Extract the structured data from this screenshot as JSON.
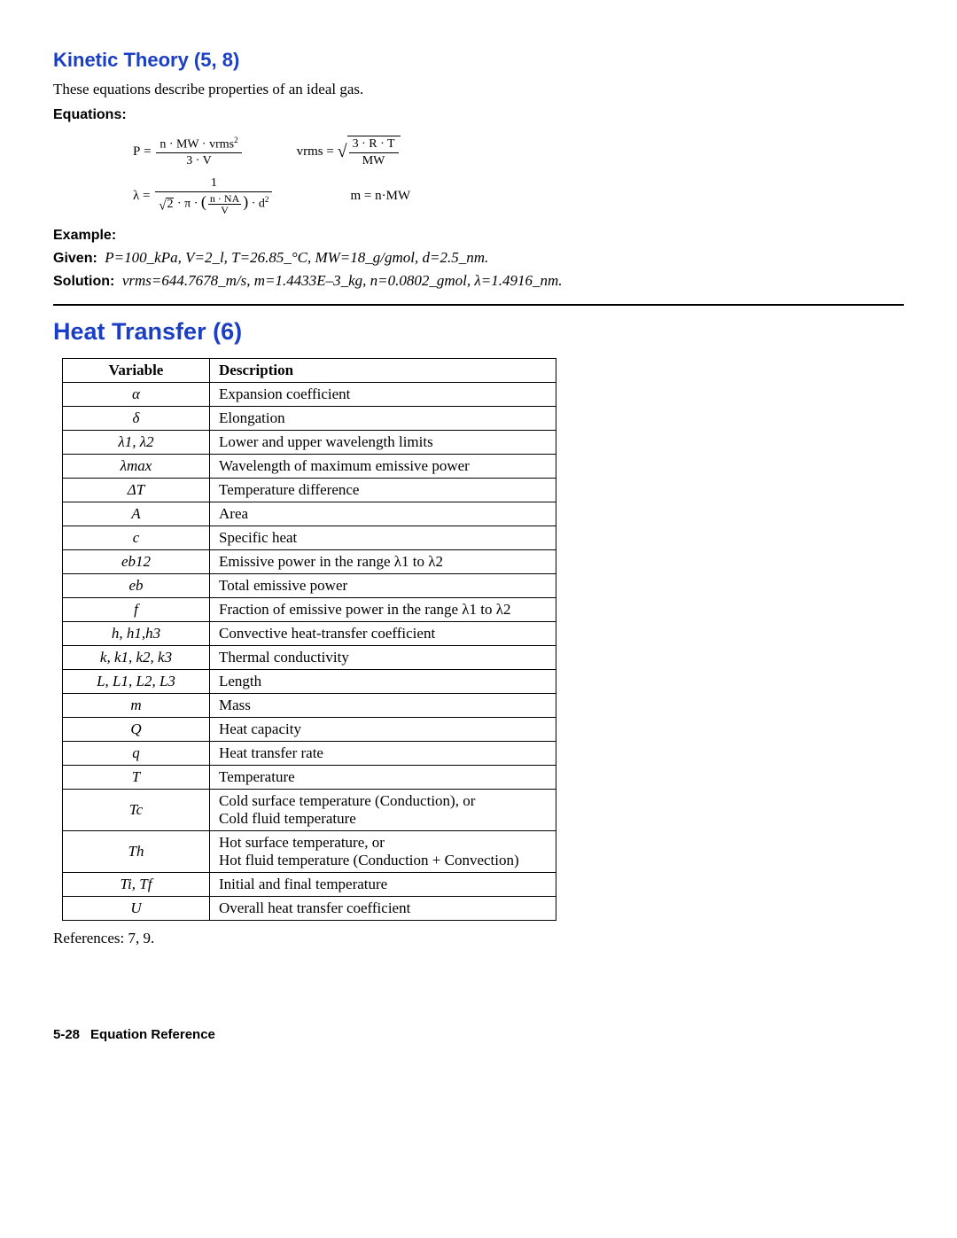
{
  "kinetic": {
    "title": "Kinetic Theory (5, 8)",
    "intro": "These equations describe properties of an ideal gas.",
    "equations_label": "Equations:",
    "example_label": "Example:",
    "given_label": "Given:",
    "given_body": "P=100_kPa, V=2_l, T=26.85_°C, MW=18_g/gmol, d=2.5_nm.",
    "solution_label": "Solution:",
    "solution_body": "vrms=644.7678_m/s, m=1.4433E–3_kg, n=0.0802_gmol, λ=1.4916_nm."
  },
  "heat": {
    "title": "Heat Transfer (6)",
    "columns": [
      "Variable",
      "Description"
    ],
    "rows": [
      {
        "var": "α",
        "desc": "Expansion coefficient"
      },
      {
        "var": "δ",
        "desc": "Elongation"
      },
      {
        "var": "λ1, λ2",
        "desc": "Lower and upper wavelength limits"
      },
      {
        "var": "λmax",
        "desc": "Wavelength of maximum emissive power"
      },
      {
        "var": "ΔT",
        "desc": "Temperature difference"
      },
      {
        "var": "A",
        "desc": "Area"
      },
      {
        "var": "c",
        "desc": "Specific heat"
      },
      {
        "var": "eb12",
        "desc": "Emissive power in the range λ1 to λ2"
      },
      {
        "var": "eb",
        "desc": "Total emissive power"
      },
      {
        "var": "f",
        "desc": "Fraction of emissive power in the range λ1 to λ2"
      },
      {
        "var": "h, h1,h3",
        "desc": "Convective heat-transfer coefficient"
      },
      {
        "var": "k, k1, k2, k3",
        "desc": "Thermal conductivity"
      },
      {
        "var": "L, L1, L2, L3",
        "desc": "Length"
      },
      {
        "var": "m",
        "desc": "Mass"
      },
      {
        "var": "Q",
        "desc": "Heat capacity"
      },
      {
        "var": "q",
        "desc": "Heat transfer rate"
      },
      {
        "var": "T",
        "desc": "Temperature"
      },
      {
        "var": "Tc",
        "desc": "Cold surface temperature (Conduction), or\nCold fluid temperature"
      },
      {
        "var": "Th",
        "desc": "Hot surface temperature, or\nHot fluid temperature (Conduction + Convection)"
      },
      {
        "var": "Ti, Tf",
        "desc": "Initial and final temperature"
      },
      {
        "var": "U",
        "desc": "Overall heat transfer coefficient"
      }
    ],
    "references": "References: 7, 9."
  },
  "footer": {
    "page": "5-28",
    "label": "Equation Reference"
  },
  "eq_text": {
    "P": "P",
    "eq": "=",
    "n": "n",
    "MW": "MW",
    "vrms": "vrms",
    "sq": "2",
    "three": "3",
    "V": "V",
    "R": "R",
    "T": "T",
    "lambda": "λ",
    "one": "1",
    "sqrt2": "2",
    "pi": "π",
    "NA": "NA",
    "d": "d",
    "m": "m",
    "dot": "·"
  }
}
